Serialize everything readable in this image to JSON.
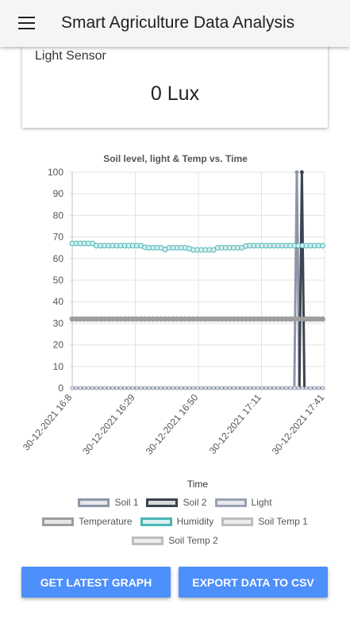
{
  "app": {
    "title": "Smart Agriculture Data Analysis"
  },
  "sensor_card": {
    "label": "Light Sensor",
    "value": "0 Lux"
  },
  "chart_data": {
    "type": "line",
    "title": "Soil level, light & Temp vs. Time",
    "xlabel": "Time",
    "ylabel": "",
    "ylim": [
      0,
      100
    ],
    "yticks": [
      0,
      10,
      20,
      30,
      40,
      50,
      60,
      70,
      80,
      90,
      100
    ],
    "xticks": [
      "30-12-2021 16:8",
      "30-12-2021 16:29",
      "30-12-2021 16:50",
      "30-12-2021 17:11",
      "30-12-2021 17:41"
    ],
    "grid": true,
    "legend_position": "bottom",
    "series": [
      {
        "name": "Soil 1",
        "color": "#8c96a8",
        "fill": "#e4e7ec",
        "points": [
          [
            0,
            0
          ],
          [
            88,
            0
          ],
          [
            89,
            100
          ],
          [
            90,
            0
          ],
          [
            100,
            0
          ]
        ]
      },
      {
        "name": "Soil 2",
        "color": "#3d4350",
        "fill": "#d8d9dd",
        "points": [
          [
            0,
            0
          ],
          [
            90,
            0
          ],
          [
            91,
            100
          ],
          [
            92,
            0
          ],
          [
            100,
            0
          ]
        ]
      },
      {
        "name": "Light",
        "color": "#9aa2b3",
        "fill": "#e7e9ee",
        "points": [
          [
            0,
            0
          ],
          [
            100,
            0
          ]
        ]
      },
      {
        "name": "Temperature",
        "color": "#9e9e9e",
        "fill": "#e6e6e6",
        "points": [
          [
            0,
            32
          ],
          [
            100,
            32
          ]
        ]
      },
      {
        "name": "Humidity",
        "color": "#4bb5b5",
        "fill": "#d9eff0",
        "points": [
          [
            0,
            67
          ],
          [
            8,
            67
          ],
          [
            9,
            66
          ],
          [
            28,
            66
          ],
          [
            29,
            65
          ],
          [
            36,
            65
          ],
          [
            37,
            64
          ],
          [
            38,
            65
          ],
          [
            46,
            65
          ],
          [
            47,
            64
          ],
          [
            56,
            64
          ],
          [
            57,
            65
          ],
          [
            68,
            65
          ],
          [
            69,
            66
          ],
          [
            100,
            66
          ]
        ]
      },
      {
        "name": "Soil Temp 1",
        "color": "#bdbdbd",
        "fill": "#ececec",
        "points": []
      },
      {
        "name": "Soil Temp 2",
        "color": "#bdbdbd",
        "fill": "#ececec",
        "points": []
      }
    ]
  },
  "buttons": {
    "latest": "GET LATEST GRAPH",
    "export": "EXPORT DATA TO CSV"
  }
}
